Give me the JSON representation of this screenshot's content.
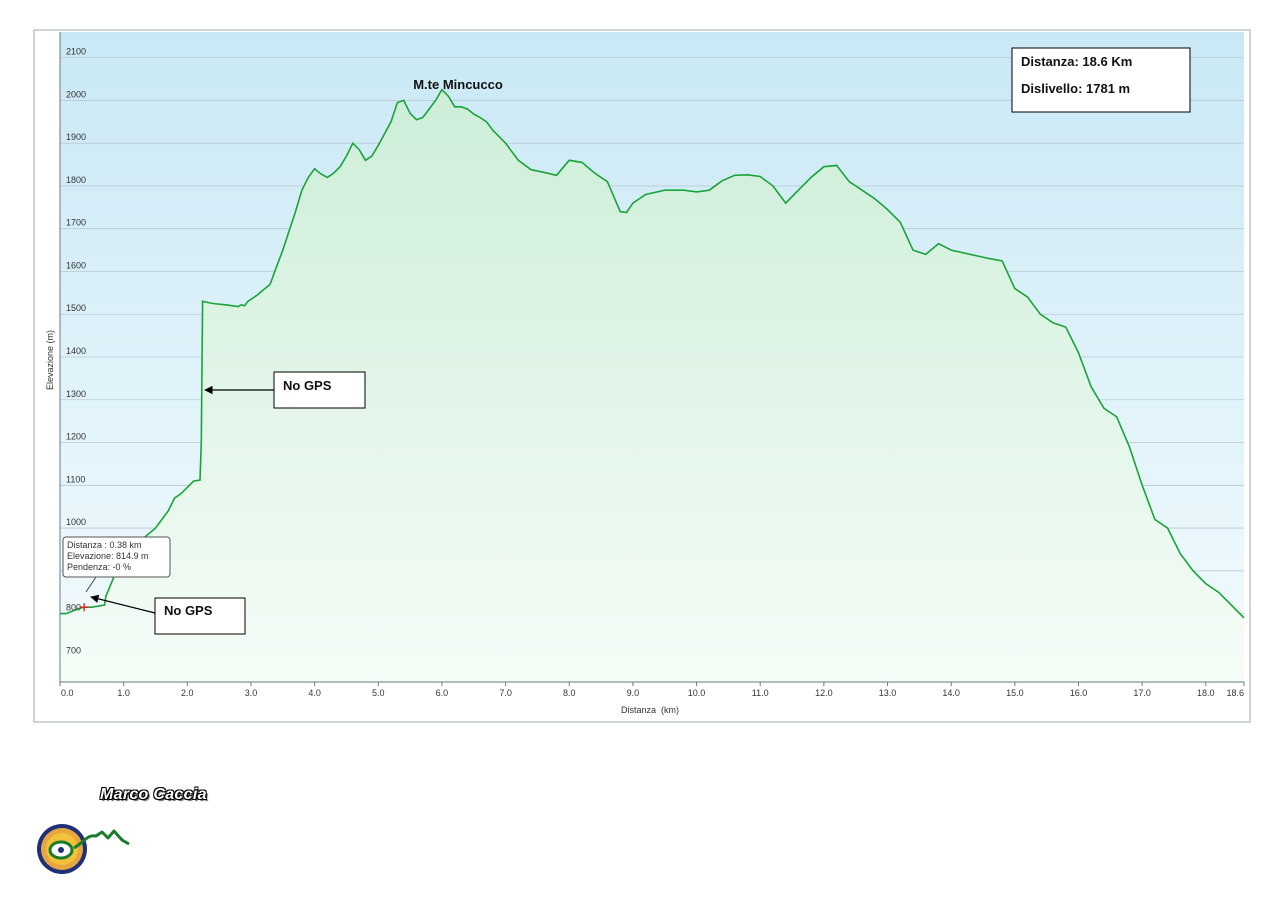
{
  "chart_data": {
    "type": "area",
    "title": "",
    "xlabel": "Distanza  (km)",
    "ylabel": "Elevazione (m)",
    "xlim": [
      0,
      18.6
    ],
    "ylim": [
      640,
      2160
    ],
    "x_ticks": [
      0,
      1,
      2,
      3,
      4,
      5,
      6,
      7,
      8,
      9,
      10,
      11,
      12,
      13,
      14,
      15,
      16,
      17,
      18,
      18.6
    ],
    "x_tick_labels": [
      "0.0",
      "1.0",
      "2.0",
      "3.0",
      "4.0",
      "5.0",
      "6.0",
      "7.0",
      "8.0",
      "9.0",
      "10.0",
      "11.0",
      "12.0",
      "13.0",
      "14.0",
      "15.0",
      "16.0",
      "17.0",
      "18.0",
      "18.6"
    ],
    "y_ticks": [
      700,
      800,
      900,
      1000,
      1100,
      1200,
      1300,
      1400,
      1500,
      1600,
      1700,
      1800,
      1900,
      2000,
      2100
    ],
    "y_tick_labels": [
      "700",
      "800",
      "900",
      "1000",
      "1100",
      "1200",
      "1300",
      "1400",
      "1500",
      "1600",
      "1700",
      "1800",
      "1900",
      "2000",
      "2100"
    ],
    "grid": true,
    "series": [
      {
        "name": "",
        "color": "#1aa33a",
        "x": [
          0,
          0.1,
          0.2,
          0.3,
          0.38,
          0.5,
          0.7,
          0.72,
          0.9,
          1.0,
          1.1,
          1.2,
          1.3,
          1.5,
          1.7,
          1.8,
          1.9,
          2.0,
          2.1,
          2.2,
          2.22,
          2.24,
          2.4,
          2.6,
          2.8,
          2.85,
          2.9,
          2.95,
          3.1,
          3.3,
          3.4,
          3.5,
          3.6,
          3.7,
          3.8,
          3.9,
          4.0,
          4.1,
          4.2,
          4.3,
          4.4,
          4.5,
          4.6,
          4.7,
          4.8,
          4.9,
          5.0,
          5.2,
          5.3,
          5.4,
          5.5,
          5.6,
          5.7,
          5.8,
          5.9,
          6.0,
          6.1,
          6.2,
          6.3,
          6.4,
          6.5,
          6.6,
          6.7,
          6.8,
          7.0,
          7.2,
          7.4,
          7.6,
          7.8,
          8.0,
          8.2,
          8.4,
          8.6,
          8.7,
          8.8,
          8.9,
          9.0,
          9.2,
          9.5,
          9.8,
          10.0,
          10.2,
          10.4,
          10.6,
          10.8,
          11.0,
          11.2,
          11.4,
          11.6,
          11.8,
          12.0,
          12.2,
          12.4,
          12.6,
          12.8,
          13.0,
          13.2,
          13.4,
          13.6,
          13.8,
          14.0,
          14.3,
          14.6,
          14.8,
          15.0,
          15.2,
          15.4,
          15.6,
          15.8,
          16.0,
          16.2,
          16.4,
          16.6,
          16.8,
          17.0,
          17.2,
          17.4,
          17.6,
          17.8,
          18.0,
          18.2,
          18.4,
          18.6
        ],
        "y": [
          800,
          800,
          806,
          812,
          815,
          815,
          820,
          840,
          905,
          935,
          950,
          965,
          975,
          1000,
          1040,
          1070,
          1080,
          1095,
          1110,
          1112,
          1200,
          1530,
          1525,
          1522,
          1518,
          1522,
          1520,
          1530,
          1545,
          1570,
          1610,
          1650,
          1695,
          1740,
          1790,
          1820,
          1840,
          1828,
          1820,
          1830,
          1845,
          1870,
          1900,
          1885,
          1860,
          1870,
          1895,
          1950,
          1995,
          2000,
          1970,
          1955,
          1960,
          1980,
          2000,
          2025,
          2010,
          1985,
          1985,
          1980,
          1968,
          1960,
          1950,
          1930,
          1900,
          1860,
          1838,
          1832,
          1825,
          1860,
          1855,
          1830,
          1810,
          1775,
          1740,
          1738,
          1760,
          1780,
          1790,
          1790,
          1786,
          1790,
          1812,
          1825,
          1826,
          1822,
          1800,
          1760,
          1790,
          1820,
          1845,
          1848,
          1810,
          1790,
          1770,
          1745,
          1715,
          1650,
          1640,
          1665,
          1650,
          1640,
          1630,
          1625,
          1560,
          1540,
          1500,
          1480,
          1470,
          1410,
          1330,
          1280,
          1260,
          1190,
          1100,
          1020,
          1000,
          940,
          900,
          870,
          850,
          820,
          790
        ]
      }
    ],
    "annotations": [
      {
        "text": "M.te Mincucco",
        "x": 6.1,
        "y": 2025
      },
      {
        "text": "No GPS",
        "x": 2.25,
        "y": 1320
      },
      {
        "text": "No GPS",
        "x": 0.45,
        "y": 810
      }
    ],
    "info_box": {
      "distance": "Distanza: 18.6 Km",
      "climb": "Dislivello: 1781 m"
    },
    "tooltip": {
      "line1": "Distanza : 0.38 km",
      "line2": "Elevazione: 814.9 m",
      "line3": "Pendenza: -0 %",
      "x": 0.38,
      "y": 814.9
    }
  },
  "author": "Marco Caccia",
  "colors": {
    "line": "#1aa33a",
    "sky_top": "#cdeaf6",
    "sky_bottom": "#f2fbfe",
    "fill_top": "#d3f0dd",
    "fill_bottom": "#f4fcf6",
    "grid": "#b8c8d4"
  }
}
